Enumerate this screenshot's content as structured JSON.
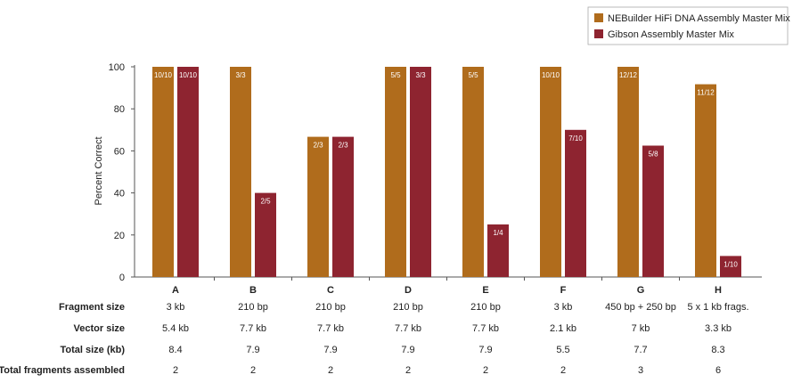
{
  "chart_data": {
    "type": "bar",
    "ylabel": "Percent Correct",
    "ylim": [
      0,
      100
    ],
    "yticks": [
      0,
      20,
      40,
      60,
      80,
      100
    ],
    "grid": false,
    "legend_position": "top-right",
    "categories": [
      "A",
      "B",
      "C",
      "D",
      "E",
      "F",
      "G",
      "H"
    ],
    "series": [
      {
        "name": "NEBuilder HiFi DNA Assembly Master Mix",
        "color": "#b06c1c",
        "values": [
          100,
          100,
          66.7,
          100,
          100,
          100,
          100,
          91.7
        ],
        "labels": [
          "10/10",
          "3/3",
          "2/3",
          "5/5",
          "5/5",
          "10/10",
          "12/12",
          "11/12"
        ]
      },
      {
        "name": "Gibson Assembly Master Mix",
        "color": "#8e2430",
        "values": [
          100,
          40,
          66.7,
          100,
          25,
          70,
          62.5,
          10
        ],
        "labels": [
          "10/10",
          "2/5",
          "2/3",
          "3/3",
          "1/4",
          "7/10",
          "5/8",
          "1/10"
        ]
      }
    ],
    "table": [
      {
        "label": "Fragment size",
        "values": [
          "3 kb",
          "210 bp",
          "210 bp",
          "210 bp",
          "210 bp",
          "3 kb",
          "450 bp + 250 bp",
          "5 x 1 kb frags."
        ]
      },
      {
        "label": "Vector size",
        "values": [
          "5.4 kb",
          "7.7 kb",
          "7.7 kb",
          "7.7 kb",
          "7.7 kb",
          "2.1 kb",
          "7 kb",
          "3.3 kb"
        ]
      },
      {
        "label": "Total size (kb)",
        "values": [
          "8.4",
          "7.9",
          "7.9",
          "7.9",
          "7.9",
          "5.5",
          "7.7",
          "8.3"
        ]
      },
      {
        "label": "Total fragments assembled",
        "values": [
          "2",
          "2",
          "2",
          "2",
          "2",
          "2",
          "3",
          "6"
        ]
      }
    ]
  }
}
